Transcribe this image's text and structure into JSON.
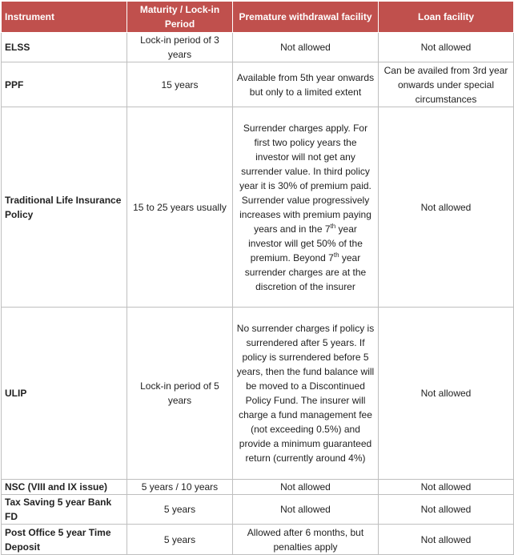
{
  "table": {
    "header": [
      "Instrument",
      "Maturity / Lock-in Period",
      "Premature withdrawal facility",
      "Loan facility"
    ],
    "rows": [
      [
        "ELSS",
        "Lock-in period of 3 years",
        "Not allowed",
        "Not allowed"
      ],
      [
        "PPF",
        "15 years",
        "Available from 5th year onwards but only to a limited extent",
        "Can be availed from 3rd year onwards under special circumstances"
      ],
      [
        "Traditional Life Insurance Policy",
        "15 to 25 years usually",
        [
          {
            "text": "Surrender charges apply. For first two policy years the investor will not get any surrender value. In third policy year it is 30% of premium paid. Surrender value progressively increases with premium paying years and in the 7"
          },
          {
            "sup": "th"
          },
          {
            "text": " year investor will get 50% of the premium. Beyond 7"
          },
          {
            "sup": "th"
          },
          {
            "text": " year surrender charges are at the discretion of the insurer"
          }
        ],
        "Not allowed"
      ],
      [
        "ULIP",
        "Lock-in period of 5 years",
        "No surrender charges if policy is surrendered after 5 years. If policy is surrendered before 5 years, then the fund balance will be moved to a Discontinued Policy Fund. The insurer will charge a fund management fee (not exceeding 0.5%) and provide a minimum guaranteed return (currently around 4%)",
        "Not allowed"
      ],
      [
        "NSC (VIII and IX issue)",
        "5 years / 10 years",
        "Not allowed",
        "Not allowed"
      ],
      [
        "Tax Saving 5 year Bank FD",
        "5 years",
        "Not allowed",
        "Not allowed"
      ],
      [
        "Post Office 5 year Time Deposit",
        "5 years",
        "Allowed after 6 months, but penalties apply",
        "Not allowed"
      ]
    ]
  }
}
